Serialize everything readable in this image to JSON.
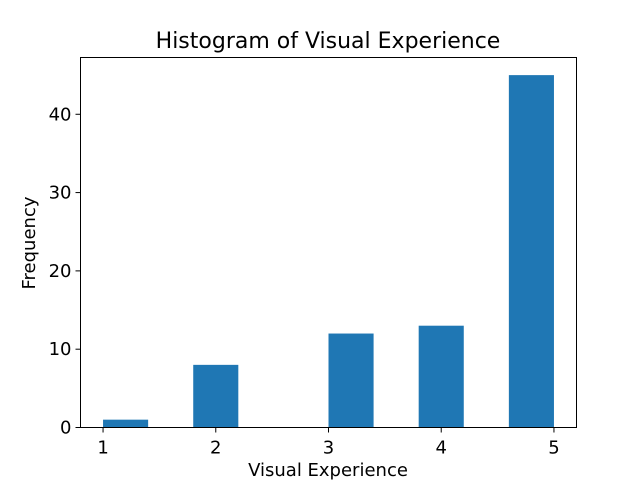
{
  "chart_data": {
    "type": "bar",
    "title": "Histogram of Visual Experience",
    "xlabel": "Visual Experience",
    "ylabel": "Frequency",
    "bins": [
      {
        "start": 1.0,
        "end": 1.4,
        "count": 1
      },
      {
        "start": 1.4,
        "end": 1.8,
        "count": 0
      },
      {
        "start": 1.8,
        "end": 2.2,
        "count": 8
      },
      {
        "start": 2.2,
        "end": 2.6,
        "count": 0
      },
      {
        "start": 2.6,
        "end": 3.0,
        "count": 0
      },
      {
        "start": 3.0,
        "end": 3.4,
        "count": 12
      },
      {
        "start": 3.4,
        "end": 3.8,
        "count": 0
      },
      {
        "start": 3.8,
        "end": 4.2,
        "count": 13
      },
      {
        "start": 4.2,
        "end": 4.6,
        "count": 0
      },
      {
        "start": 4.6,
        "end": 5.0,
        "count": 45
      }
    ],
    "xlim": [
      0.8,
      5.2
    ],
    "ylim": [
      0,
      47.25
    ],
    "xticks": [
      1,
      2,
      3,
      4,
      5
    ],
    "yticks": [
      0,
      10,
      20,
      30,
      40
    ],
    "bar_color": "#1f77b4",
    "grid": false
  }
}
